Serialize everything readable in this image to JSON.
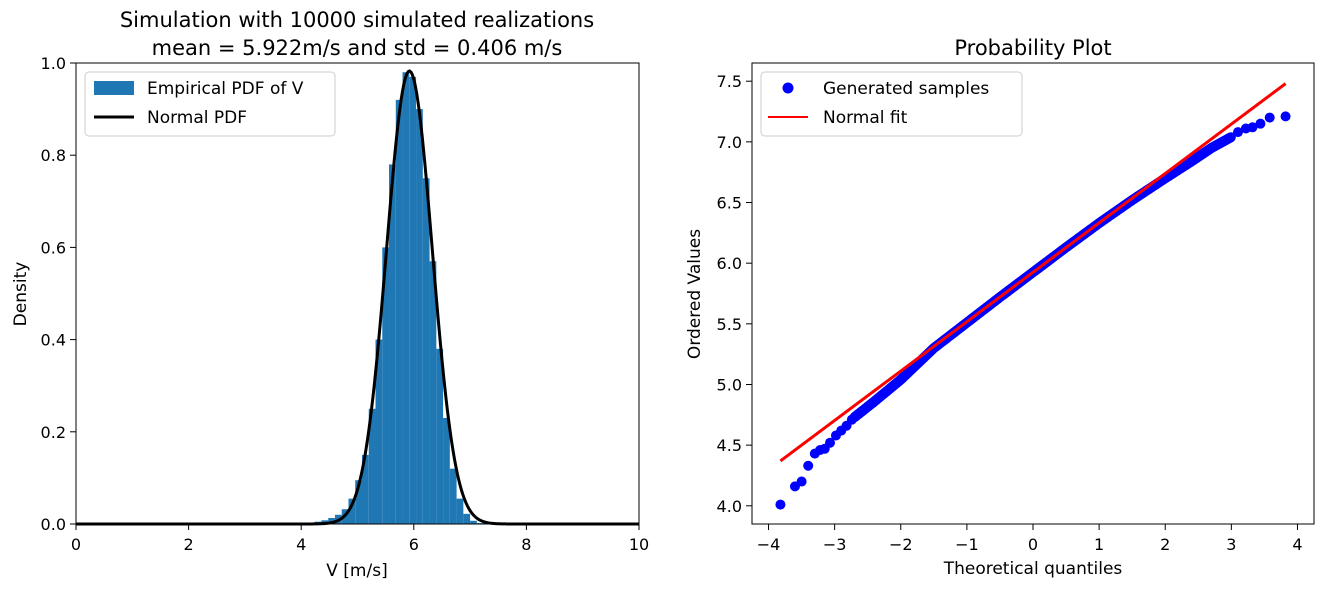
{
  "chart_data": [
    {
      "type": "bar",
      "title_lines": [
        "Simulation with 10000 simulated realizations",
        "mean = 5.922m/s and std = 0.406 m/s"
      ],
      "xlabel": "V [m/s]",
      "ylabel": "Density",
      "xlim": [
        0,
        10
      ],
      "ylim": [
        0,
        1.0
      ],
      "xticks": [
        "0",
        "2",
        "4",
        "6",
        "8",
        "10"
      ],
      "yticks": [
        "0.0",
        "0.2",
        "0.4",
        "0.6",
        "0.8",
        "1.0"
      ],
      "legend_position": "upper-left",
      "grid": false,
      "series": [
        {
          "name": "Empirical PDF of V",
          "kind": "histogram",
          "color": "#1f77b4",
          "bin_edges": [
            4.0,
            4.12,
            4.24,
            4.36,
            4.48,
            4.6,
            4.72,
            4.84,
            4.96,
            5.08,
            5.2,
            5.32,
            5.44,
            5.56,
            5.68,
            5.8,
            5.92,
            6.04,
            6.16,
            6.28,
            6.4,
            6.52,
            6.64,
            6.76,
            6.88,
            7.0,
            7.12,
            7.24
          ],
          "densities": [
            0.002,
            0.003,
            0.005,
            0.008,
            0.013,
            0.02,
            0.032,
            0.055,
            0.095,
            0.15,
            0.25,
            0.4,
            0.6,
            0.78,
            0.92,
            0.98,
            0.97,
            0.9,
            0.75,
            0.57,
            0.38,
            0.23,
            0.12,
            0.055,
            0.022,
            0.007,
            0.002
          ]
        },
        {
          "name": "Normal PDF",
          "kind": "line",
          "color": "#000000",
          "mean": 5.922,
          "std": 0.406
        }
      ]
    },
    {
      "type": "scatter",
      "title": "Probability Plot",
      "xlabel": "Theoretical quantiles",
      "ylabel": "Ordered Values",
      "xlim": [
        -4.25,
        4.25
      ],
      "ylim": [
        3.85,
        7.65
      ],
      "xticks": [
        "−4",
        "−3",
        "−2",
        "−1",
        "0",
        "1",
        "2",
        "3",
        "4"
      ],
      "yticks": [
        "4.0",
        "4.5",
        "5.0",
        "5.5",
        "6.0",
        "6.5",
        "7.0",
        "7.5"
      ],
      "legend_position": "upper-left",
      "grid": false,
      "series": [
        {
          "name": "Generated samples",
          "kind": "points",
          "color": "#0000ff",
          "outliers": [
            [
              -3.82,
              4.01
            ],
            [
              -3.6,
              4.16
            ],
            [
              -3.5,
              4.2
            ],
            [
              -3.4,
              4.33
            ],
            [
              -3.3,
              4.43
            ],
            [
              -3.22,
              4.46
            ],
            [
              -3.15,
              4.47
            ],
            [
              -3.07,
              4.52
            ],
            [
              -2.98,
              4.58
            ],
            [
              -2.9,
              4.62
            ],
            [
              -2.82,
              4.66
            ],
            [
              -2.74,
              4.71
            ],
            [
              3.1,
              7.08
            ],
            [
              3.22,
              7.11
            ],
            [
              3.32,
              7.12
            ],
            [
              3.44,
              7.15
            ],
            [
              3.58,
              7.2
            ],
            [
              3.82,
              7.21
            ]
          ],
          "bulk_curve": [
            [
              -2.7,
              4.73
            ],
            [
              -2.4,
              4.86
            ],
            [
              -2.0,
              5.04
            ],
            [
              -1.5,
              5.3
            ],
            [
              -1.0,
              5.51
            ],
            [
              -0.5,
              5.72
            ],
            [
              0.0,
              5.925
            ],
            [
              0.5,
              6.13
            ],
            [
              1.0,
              6.33
            ],
            [
              1.5,
              6.52
            ],
            [
              2.0,
              6.7
            ],
            [
              2.4,
              6.84
            ],
            [
              2.7,
              6.95
            ],
            [
              3.0,
              7.04
            ]
          ]
        },
        {
          "name": "Normal fit",
          "kind": "line",
          "color": "#ff0000",
          "points": [
            [
              -3.82,
              4.37
            ],
            [
              3.82,
              7.48
            ]
          ]
        }
      ]
    }
  ]
}
